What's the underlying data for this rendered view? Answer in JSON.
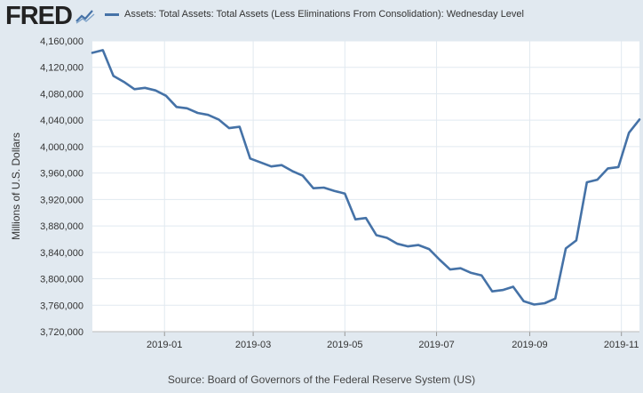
{
  "header": {
    "logo_text": "FRED",
    "logo_icon": "trend-line-icon"
  },
  "footer": {
    "source": "Source: Board of Governors of the Federal Reserve System (US)"
  },
  "colors": {
    "series": "#4572a7",
    "background": "#e1e9f0",
    "plot_background": "#ffffff",
    "grid": "#e1e9f0"
  },
  "chart_data": {
    "type": "line",
    "title": "",
    "xlabel": "",
    "ylabel": "Millions of U.S. Dollars",
    "grid": true,
    "legend": "top",
    "ylim": [
      3720000,
      4160000
    ],
    "xlim": [
      "2018-11-14",
      "2019-11-13"
    ],
    "yticks": [
      3720000,
      3760000,
      3800000,
      3840000,
      3880000,
      3920000,
      3960000,
      4000000,
      4040000,
      4080000,
      4120000,
      4160000
    ],
    "ytick_labels": [
      "3,720,000",
      "3,760,000",
      "3,800,000",
      "3,840,000",
      "3,880,000",
      "3,920,000",
      "3,960,000",
      "4,000,000",
      "4,040,000",
      "4,080,000",
      "4,120,000",
      "4,160,000"
    ],
    "xticks": [
      "2019-01-01",
      "2019-03-01",
      "2019-05-01",
      "2019-07-01",
      "2019-09-01",
      "2019-11-01"
    ],
    "xtick_labels": [
      "2019-01",
      "2019-03",
      "2019-05",
      "2019-07",
      "2019-09",
      "2019-11"
    ],
    "series": [
      {
        "name": "Assets: Total Assets: Total Assets (Less Eliminations From Consolidation): Wednesday Level",
        "x": [
          "2018-11-14",
          "2018-11-21",
          "2018-11-28",
          "2018-12-05",
          "2018-12-12",
          "2018-12-19",
          "2018-12-26",
          "2019-01-02",
          "2019-01-09",
          "2019-01-16",
          "2019-01-23",
          "2019-01-30",
          "2019-02-06",
          "2019-02-13",
          "2019-02-20",
          "2019-02-27",
          "2019-03-06",
          "2019-03-13",
          "2019-03-20",
          "2019-03-27",
          "2019-04-03",
          "2019-04-10",
          "2019-04-17",
          "2019-04-24",
          "2019-05-01",
          "2019-05-08",
          "2019-05-15",
          "2019-05-22",
          "2019-05-29",
          "2019-06-05",
          "2019-06-12",
          "2019-06-19",
          "2019-06-26",
          "2019-07-03",
          "2019-07-10",
          "2019-07-17",
          "2019-07-24",
          "2019-07-31",
          "2019-08-07",
          "2019-08-14",
          "2019-08-21",
          "2019-08-28",
          "2019-09-04",
          "2019-09-11",
          "2019-09-18",
          "2019-09-25",
          "2019-10-02",
          "2019-10-09",
          "2019-10-16",
          "2019-10-23",
          "2019-10-30",
          "2019-11-06",
          "2019-11-13"
        ],
        "values": [
          4142000,
          4146000,
          4107000,
          4098000,
          4087000,
          4089000,
          4085000,
          4077000,
          4060000,
          4058000,
          4051000,
          4048000,
          4041000,
          4028000,
          4030000,
          3982000,
          3976000,
          3970000,
          3972000,
          3963000,
          3956000,
          3937000,
          3938000,
          3933000,
          3929000,
          3890000,
          3892000,
          3866000,
          3862000,
          3853000,
          3849000,
          3851000,
          3845000,
          3829000,
          3814000,
          3816000,
          3809000,
          3805000,
          3781000,
          3783000,
          3788000,
          3766000,
          3761000,
          3763000,
          3770000,
          3846000,
          3858000,
          3946000,
          3950000,
          3967000,
          3969000,
          4021000,
          4041000
        ]
      }
    ]
  }
}
